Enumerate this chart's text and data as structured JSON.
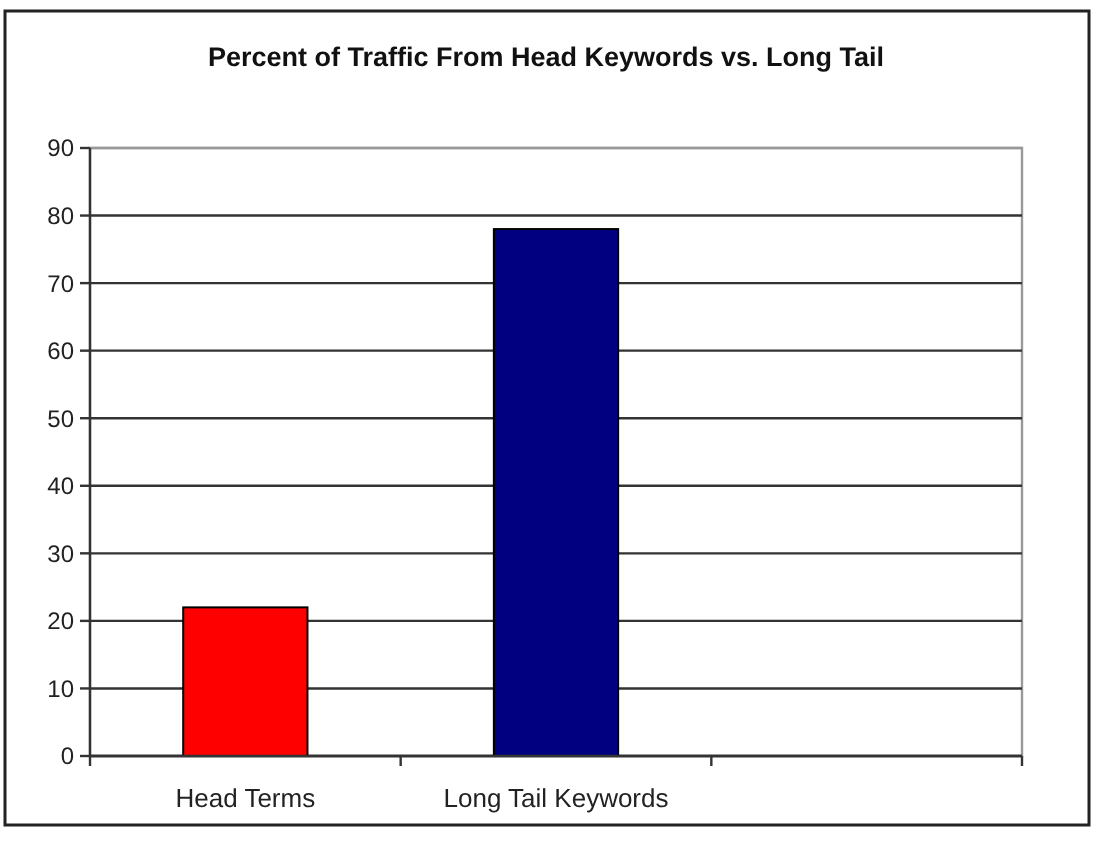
{
  "chart_data": {
    "type": "bar",
    "title": "Percent of Traffic From Head Keywords vs. Long Tail",
    "categories": [
      "Head Terms",
      "Long Tail Keywords",
      null
    ],
    "values": [
      22,
      78,
      null
    ],
    "colors": [
      "#ff0000",
      "#000080",
      null
    ],
    "ylim": [
      0,
      90
    ],
    "yticks": [
      0,
      10,
      20,
      30,
      40,
      50,
      60,
      70,
      80,
      90
    ],
    "grid": "y"
  }
}
